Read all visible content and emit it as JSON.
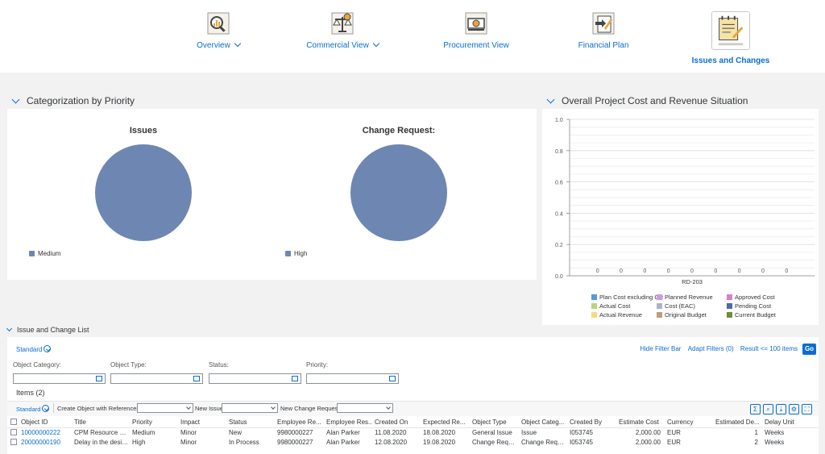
{
  "nav": {
    "items": [
      {
        "label": "Overview",
        "has_menu": true,
        "icon": "overview-icon"
      },
      {
        "label": "Commercial View",
        "has_menu": true,
        "icon": "scales-icon"
      },
      {
        "label": "Procurement View",
        "has_menu": false,
        "icon": "cash-icon"
      },
      {
        "label": "Financial Plan",
        "has_menu": false,
        "icon": "plan-icon"
      },
      {
        "label": "Issues and Changes",
        "has_menu": false,
        "icon": "notepad-icon",
        "active": true
      }
    ]
  },
  "categorization": {
    "title": "Categorization by Priority",
    "issues": {
      "title": "Issues",
      "legend": "Medium"
    },
    "change_request": {
      "title": "Change Request:",
      "legend": "High"
    }
  },
  "cost": {
    "title": "Overall Project Cost and Revenue Situation",
    "legend": [
      {
        "label": "Plan Cost excluding CR",
        "color": "#5899da"
      },
      {
        "label": "Planned Revenue",
        "color": "#c99ee0"
      },
      {
        "label": "Approved Cost",
        "color": "#d97ed1"
      },
      {
        "label": "Actual Cost",
        "color": "#b6d87d"
      },
      {
        "label": "Cost (EAC)",
        "color": "#a9b4c8"
      },
      {
        "label": "Pending Cost",
        "color": "#4e6ba2"
      },
      {
        "label": "Actual Revenue",
        "color": "#f3dc7f"
      },
      {
        "label": "Original Budget",
        "color": "#bb9e7c"
      },
      {
        "label": "Current Budget",
        "color": "#6d8e3e"
      }
    ]
  },
  "chart_data": [
    {
      "type": "pie",
      "title": "Issues",
      "slices": [
        {
          "label": "Medium",
          "value": 1
        }
      ]
    },
    {
      "type": "pie",
      "title": "Change Request:",
      "slices": [
        {
          "label": "High",
          "value": 1
        }
      ]
    },
    {
      "type": "bar",
      "title": "",
      "categories": [
        "RD-203"
      ],
      "series": [
        {
          "name": "Plan Cost excluding CR",
          "values": [
            0
          ]
        },
        {
          "name": "Planned Revenue",
          "values": [
            0
          ]
        },
        {
          "name": "Approved Cost",
          "values": [
            0
          ]
        },
        {
          "name": "Actual Cost",
          "values": [
            0
          ]
        },
        {
          "name": "Cost (EAC)",
          "values": [
            0
          ]
        },
        {
          "name": "Pending Cost",
          "values": [
            0
          ]
        },
        {
          "name": "Actual Revenue",
          "values": [
            0
          ]
        },
        {
          "name": "Original Budget",
          "values": [
            0
          ]
        },
        {
          "name": "Current Budget",
          "values": [
            0
          ]
        }
      ],
      "ylim": [
        0,
        1.0
      ],
      "yticks": [
        "0.0",
        "0.2",
        "0.4",
        "0.6",
        "0.8",
        "1.0"
      ],
      "data_labels": [
        "0",
        "0",
        "0",
        "0",
        "0",
        "0",
        "0",
        "0",
        "0"
      ],
      "grid": true,
      "legend_position": "bottom"
    }
  ],
  "list": {
    "section_title": "Issue and Change List",
    "variant": "Standard",
    "hide_filter_bar": "Hide Filter Bar",
    "adapt_filters": "Adapt Filters (0)",
    "result": "Result <= 100 items",
    "go": "Go",
    "filters": [
      "Object Category:",
      "Object Type:",
      "Status:",
      "Priority:"
    ],
    "items_label": "Items (2)",
    "toolbar": {
      "variant": "Standard",
      "create_label": "Create Object with References:",
      "new_issue_label": "New Issue:",
      "new_cr_label": "New Change Request:"
    },
    "columns": [
      "Object ID",
      "Title",
      "Priority",
      "Impact",
      "Status",
      "Employee Re...",
      "Employee Res...",
      "Created On",
      "Expected Re...",
      "Object Type",
      "Object Categ...",
      "Created By",
      "Estimate Cost",
      "Currency",
      "Estimated De...",
      "Delay Unit"
    ],
    "rows": [
      [
        "10000000222",
        "CPM Resource not ...",
        "Medium",
        "Minor",
        "New",
        "9980000227",
        "Alan Parker",
        "11.08.2020",
        "18.08.2020",
        "General Issue",
        "Issue",
        "I053745",
        "2,000.00",
        "EUR",
        "1",
        "Weeks"
      ],
      [
        "20000000190",
        "Delay in the design...",
        "High",
        "Minor",
        "In Process",
        "9980000227",
        "Alan Parker",
        "12.08.2020",
        "19.08.2020",
        "Change Request",
        "Change Request",
        "I053745",
        "2,000.00",
        "EUR",
        "2",
        "Weeks"
      ]
    ]
  }
}
